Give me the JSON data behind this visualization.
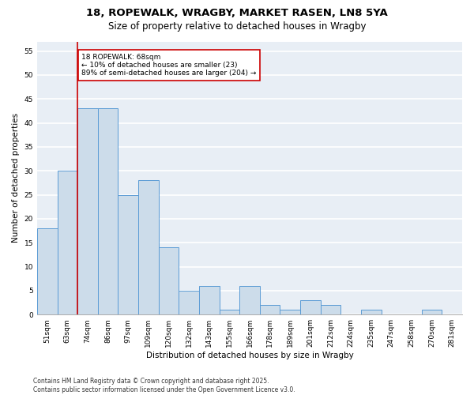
{
  "title_line1": "18, ROPEWALK, WRAGBY, MARKET RASEN, LN8 5YA",
  "title_line2": "Size of property relative to detached houses in Wragby",
  "xlabel": "Distribution of detached houses by size in Wragby",
  "ylabel": "Number of detached properties",
  "categories": [
    "51sqm",
    "63sqm",
    "74sqm",
    "86sqm",
    "97sqm",
    "109sqm",
    "120sqm",
    "132sqm",
    "143sqm",
    "155sqm",
    "166sqm",
    "178sqm",
    "189sqm",
    "201sqm",
    "212sqm",
    "224sqm",
    "235sqm",
    "247sqm",
    "258sqm",
    "270sqm",
    "281sqm"
  ],
  "values": [
    18,
    30,
    43,
    43,
    25,
    28,
    14,
    5,
    6,
    1,
    6,
    2,
    1,
    3,
    2,
    0,
    1,
    0,
    0,
    1,
    0
  ],
  "bar_color": "#ccdcea",
  "bar_edge_color": "#5b9bd5",
  "vline_x": 1.5,
  "vline_color": "#cc0000",
  "annotation_text": "18 ROPEWALK: 68sqm\n← 10% of detached houses are smaller (23)\n89% of semi-detached houses are larger (204) →",
  "annotation_box_color": "#cc0000",
  "ylim": [
    0,
    57
  ],
  "yticks": [
    0,
    5,
    10,
    15,
    20,
    25,
    30,
    35,
    40,
    45,
    50,
    55
  ],
  "footer": "Contains HM Land Registry data © Crown copyright and database right 2025.\nContains public sector information licensed under the Open Government Licence v3.0.",
  "bg_color": "#e8eef5",
  "grid_color": "#ffffff",
  "title_fontsize": 9.5,
  "subtitle_fontsize": 8.5,
  "axis_label_fontsize": 7.5,
  "tick_fontsize": 6.5,
  "annotation_fontsize": 6.5,
  "footer_fontsize": 5.5
}
